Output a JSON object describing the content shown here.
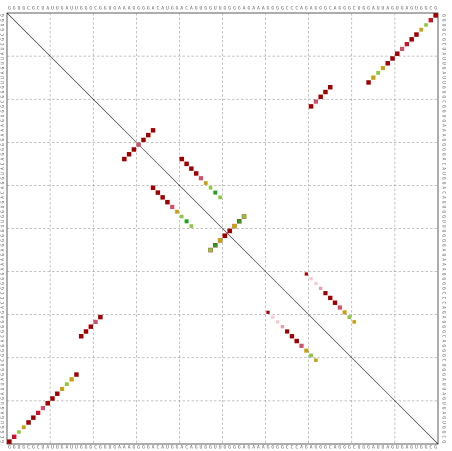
{
  "plot": {
    "type": "rna-dot-plot",
    "sequence": "GGUGCGCUAUUGAUUGGGCGGUGAAAGGGGACAUGGACAGUGGUUGGGGAGAAAGGGGCCCAGAGGGCAGGGCUGGAUUAGUGAGUGGCG",
    "length": 90,
    "grid_lines": true,
    "grid_divisions": 10,
    "diagonal_line": true,
    "color_scale": {
      "very_high": "#a00000",
      "high": "#c8142b",
      "medium_high": "#d0506a",
      "medium": "#e8a0b0",
      "low": "#f4c8cf",
      "mid_green": "#1fa31f",
      "yellow_green": "#8cc83c",
      "gold": "#c8a014"
    },
    "helices": [
      {
        "i_start": 1,
        "j_start": 90,
        "length": 6,
        "probabilities": [
          0.98,
          0.95,
          0.9,
          0.85,
          0.8,
          0.7
        ]
      },
      {
        "i_start": 1,
        "j_start": 90,
        "length": 0,
        "probabilities": []
      }
    ],
    "pairs_upper": [
      {
        "i": 1,
        "j": 90,
        "p": 0.97,
        "tone": "very_high"
      },
      {
        "i": 2,
        "j": 89,
        "p": 0.95,
        "tone": "high"
      },
      {
        "i": 3,
        "j": 88,
        "p": 0.6,
        "tone": "yellow_green"
      },
      {
        "i": 4,
        "j": 87,
        "p": 0.7,
        "tone": "gold"
      },
      {
        "i": 5,
        "j": 86,
        "p": 0.98,
        "tone": "very_high"
      },
      {
        "i": 6,
        "j": 85,
        "p": 0.97,
        "tone": "very_high"
      },
      {
        "i": 7,
        "j": 84,
        "p": 0.9,
        "tone": "high"
      },
      {
        "i": 8,
        "j": 83,
        "p": 0.85,
        "tone": "medium_high"
      },
      {
        "i": 9,
        "j": 82,
        "p": 0.97,
        "tone": "very_high"
      },
      {
        "i": 10,
        "j": 81,
        "p": 0.96,
        "tone": "very_high"
      },
      {
        "i": 11,
        "j": 80,
        "p": 0.95,
        "tone": "very_high"
      },
      {
        "i": 12,
        "j": 79,
        "p": 0.8,
        "tone": "gold"
      },
      {
        "i": 13,
        "j": 78,
        "p": 0.7,
        "tone": "yellow_green"
      },
      {
        "i": 14,
        "j": 77,
        "p": 0.9,
        "tone": "gold"
      },
      {
        "i": 15,
        "j": 76,
        "p": 0.95,
        "tone": "very_high"
      },
      {
        "i": 25,
        "j": 31,
        "p": 0.97,
        "tone": "very_high"
      },
      {
        "i": 26,
        "j": 30,
        "p": 0.96,
        "tone": "very_high"
      },
      {
        "i": 27,
        "j": 29,
        "p": 0.95,
        "tone": "very_high"
      },
      {
        "i": 28,
        "j": 28,
        "p": 0.8,
        "tone": "medium_high"
      },
      {
        "i": 16,
        "j": 68,
        "p": 0.97,
        "tone": "very_high"
      },
      {
        "i": 17,
        "j": 67,
        "p": 0.96,
        "tone": "very_high"
      },
      {
        "i": 18,
        "j": 66,
        "p": 0.95,
        "tone": "very_high"
      },
      {
        "i": 19,
        "j": 65,
        "p": 0.85,
        "tone": "medium_high"
      },
      {
        "i": 20,
        "j": 64,
        "p": 0.97,
        "tone": "very_high"
      },
      {
        "i": 43,
        "j": 50,
        "p": 0.97,
        "tone": "very_high"
      },
      {
        "i": 44,
        "j": 49,
        "p": 0.96,
        "tone": "very_high"
      },
      {
        "i": 45,
        "j": 48,
        "p": 0.95,
        "tone": "very_high"
      },
      {
        "i": 46,
        "j": 47,
        "p": 0.96,
        "tone": "very_high"
      },
      {
        "i": 47,
        "j": 46,
        "p": 0.95,
        "tone": "very_high"
      },
      {
        "i": 48,
        "j": 45,
        "p": 0.9,
        "tone": "gold"
      },
      {
        "i": 49,
        "j": 44,
        "p": 0.75,
        "tone": "mid_green"
      },
      {
        "i": 50,
        "j": 43,
        "p": 0.7,
        "tone": "yellow_green"
      },
      {
        "i": 31,
        "j": 37,
        "p": 0.97,
        "tone": "very_high"
      },
      {
        "i": 32,
        "j": 38,
        "p": 0.96,
        "tone": "very_high"
      },
      {
        "i": 33,
        "j": 39,
        "p": 0.95,
        "tone": "very_high"
      },
      {
        "i": 34,
        "j": 40,
        "p": 0.97,
        "tone": "very_high"
      },
      {
        "i": 35,
        "j": 41,
        "p": 0.85,
        "tone": "medium_high"
      },
      {
        "i": 36,
        "j": 42,
        "p": 0.7,
        "tone": "gold"
      },
      {
        "i": 37,
        "j": 43,
        "p": 0.6,
        "tone": "yellow_green"
      },
      {
        "i": 38,
        "j": 44,
        "p": 0.75,
        "tone": "mid_green"
      },
      {
        "i": 39,
        "j": 45,
        "p": 0.65,
        "tone": "yellow_green"
      },
      {
        "i": 63,
        "j": 55,
        "p": 0.5,
        "tone": "very_high"
      },
      {
        "i": 64,
        "j": 56,
        "p": 0.5,
        "tone": "low"
      },
      {
        "i": 65,
        "j": 57,
        "p": 0.5,
        "tone": "low"
      },
      {
        "i": 66,
        "j": 58,
        "p": 0.55,
        "tone": "medium"
      },
      {
        "i": 67,
        "j": 59,
        "p": 0.85,
        "tone": "very_high"
      },
      {
        "i": 68,
        "j": 60,
        "p": 0.9,
        "tone": "very_high"
      },
      {
        "i": 69,
        "j": 61,
        "p": 0.95,
        "tone": "very_high"
      },
      {
        "i": 70,
        "j": 62,
        "p": 0.85,
        "tone": "medium_high"
      },
      {
        "i": 71,
        "j": 63,
        "p": 0.8,
        "tone": "gold"
      },
      {
        "i": 72,
        "j": 64,
        "p": 0.7,
        "tone": "yellow_green"
      },
      {
        "i": 73,
        "j": 65,
        "p": 0.6,
        "tone": "gold"
      }
    ]
  }
}
